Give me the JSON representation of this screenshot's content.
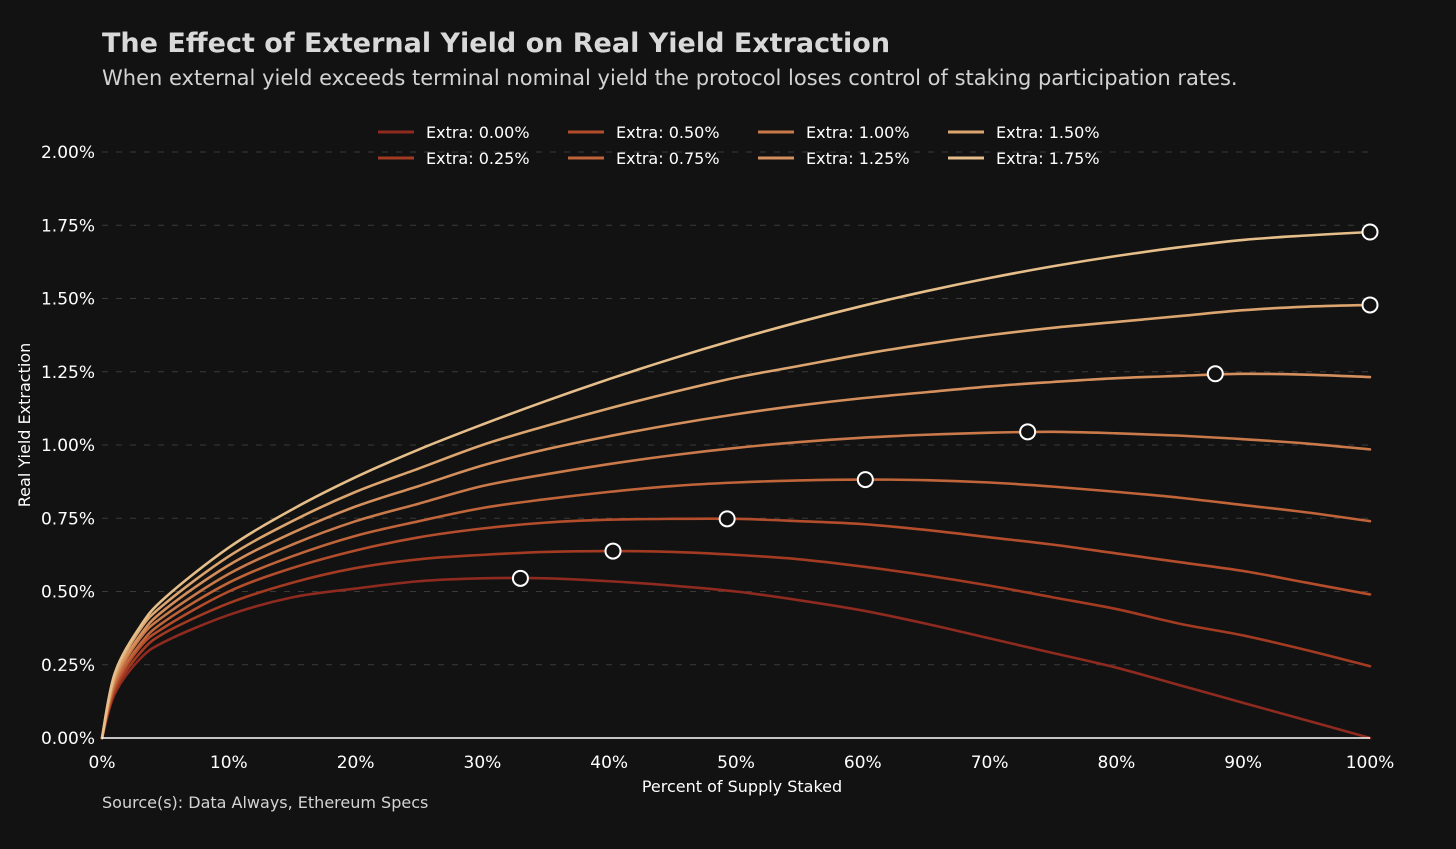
{
  "header": {
    "title": "The Effect of External Yield on Real Yield Extraction",
    "subtitle": "When external yield exceeds terminal nominal yield the protocol loses control of staking participation rates."
  },
  "footer": {
    "source": "Source(s): Data Always, Ethereum Specs"
  },
  "chart_data": {
    "type": "line",
    "title": "The Effect of External Yield on Real Yield Extraction",
    "subtitle": "When external yield exceeds terminal nominal yield the protocol loses control of staking participation rates.",
    "xlabel": "Percent of Supply Staked",
    "ylabel": "Real Yield Extraction",
    "xlim": [
      0,
      100
    ],
    "ylim": [
      0,
      2.0
    ],
    "x_ticks": [
      "0%",
      "10%",
      "20%",
      "30%",
      "40%",
      "50%",
      "60%",
      "70%",
      "80%",
      "90%",
      "100%"
    ],
    "y_ticks": [
      "0.00%",
      "0.25%",
      "0.50%",
      "0.75%",
      "1.00%",
      "1.25%",
      "1.50%",
      "1.75%",
      "2.00%"
    ],
    "grid": "horizontal dashed",
    "legend_position": "top-center",
    "x": [
      0,
      1,
      3,
      5,
      10,
      15,
      20,
      25,
      30,
      35,
      40,
      45,
      50,
      55,
      60,
      65,
      70,
      75,
      80,
      85,
      90,
      95,
      100
    ],
    "series": [
      {
        "name": "Extra: 0.00%",
        "color": "#8e2a1f",
        "values": [
          0,
          0.15,
          0.27,
          0.33,
          0.42,
          0.48,
          0.51,
          0.535,
          0.545,
          0.545,
          0.535,
          0.52,
          0.5,
          0.47,
          0.435,
          0.39,
          0.34,
          0.29,
          0.24,
          0.18,
          0.12,
          0.06,
          0.0
        ],
        "peak": [
          33,
          0.545
        ]
      },
      {
        "name": "Extra: 0.25%",
        "color": "#a33a22",
        "values": [
          0,
          0.16,
          0.29,
          0.36,
          0.46,
          0.53,
          0.58,
          0.61,
          0.625,
          0.635,
          0.638,
          0.635,
          0.625,
          0.61,
          0.585,
          0.555,
          0.52,
          0.48,
          0.44,
          0.39,
          0.35,
          0.3,
          0.245
        ],
        "peak": [
          40.3,
          0.638
        ]
      },
      {
        "name": "Extra: 0.50%",
        "color": "#b44d2c",
        "values": [
          0,
          0.17,
          0.31,
          0.38,
          0.5,
          0.58,
          0.64,
          0.685,
          0.715,
          0.735,
          0.745,
          0.748,
          0.748,
          0.74,
          0.73,
          0.71,
          0.685,
          0.66,
          0.63,
          0.6,
          0.57,
          0.53,
          0.49
        ],
        "peak": [
          49.3,
          0.748
        ]
      },
      {
        "name": "Extra: 0.75%",
        "color": "#c0643a",
        "values": [
          0,
          0.18,
          0.32,
          0.4,
          0.53,
          0.62,
          0.69,
          0.74,
          0.785,
          0.815,
          0.84,
          0.86,
          0.872,
          0.879,
          0.882,
          0.88,
          0.872,
          0.858,
          0.84,
          0.82,
          0.795,
          0.77,
          0.74
        ],
        "peak": [
          60.2,
          0.882
        ]
      },
      {
        "name": "Extra: 1.00%",
        "color": "#c9794a",
        "values": [
          0,
          0.19,
          0.34,
          0.42,
          0.56,
          0.66,
          0.74,
          0.8,
          0.86,
          0.9,
          0.935,
          0.965,
          0.99,
          1.01,
          1.025,
          1.035,
          1.042,
          1.045,
          1.04,
          1.032,
          1.02,
          1.005,
          0.985
        ],
        "peak": [
          73,
          1.045
        ]
      },
      {
        "name": "Extra: 1.25%",
        "color": "#d48f5c",
        "values": [
          0,
          0.2,
          0.35,
          0.44,
          0.59,
          0.7,
          0.79,
          0.86,
          0.93,
          0.985,
          1.03,
          1.07,
          1.105,
          1.135,
          1.16,
          1.18,
          1.2,
          1.215,
          1.228,
          1.236,
          1.243,
          1.24,
          1.232
        ],
        "peak": [
          87.8,
          1.243
        ]
      },
      {
        "name": "Extra: 1.50%",
        "color": "#dca56f",
        "values": [
          0,
          0.21,
          0.37,
          0.46,
          0.62,
          0.74,
          0.84,
          0.92,
          1.0,
          1.065,
          1.125,
          1.18,
          1.23,
          1.27,
          1.31,
          1.345,
          1.375,
          1.4,
          1.42,
          1.44,
          1.46,
          1.472,
          1.478
        ],
        "peak": [
          100,
          1.478
        ]
      },
      {
        "name": "Extra: 1.75%",
        "color": "#e6be8a",
        "values": [
          0,
          0.22,
          0.38,
          0.48,
          0.65,
          0.78,
          0.89,
          0.985,
          1.07,
          1.15,
          1.225,
          1.295,
          1.36,
          1.42,
          1.475,
          1.525,
          1.57,
          1.61,
          1.645,
          1.675,
          1.7,
          1.715,
          1.727
        ],
        "peak": [
          100,
          1.727
        ]
      }
    ]
  }
}
